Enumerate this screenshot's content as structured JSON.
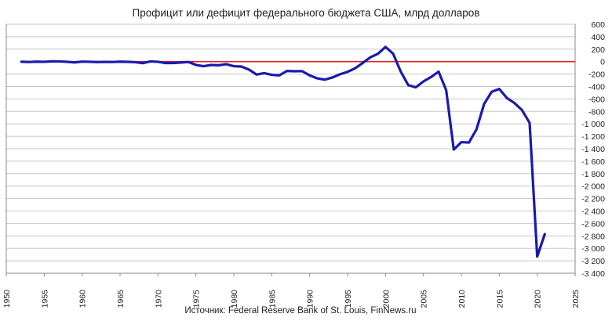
{
  "chart_data": {
    "type": "line",
    "title": "Профицит или дефицит федерального бюджета США, млрд долларов",
    "source": "Источник: Federal Reserve Bank of St. Louis, FinNews.ru",
    "xlim": [
      1950,
      2025
    ],
    "ylim": [
      -3400,
      600
    ],
    "x_ticks": [
      "1950",
      "1955",
      "1960",
      "1965",
      "1970",
      "1975",
      "1980",
      "1985",
      "1990",
      "1995",
      "2000",
      "2005",
      "2010",
      "2015",
      "2020",
      "2025"
    ],
    "y_ticks": [
      "600",
      "400",
      "200",
      "0",
      "-200",
      "-400",
      "-600",
      "-800",
      "-1 000",
      "-1 200",
      "-1 400",
      "-1 600",
      "-1 800",
      "-2 000",
      "-2 200",
      "-2 400",
      "-2 600",
      "-2 800",
      "-3 000",
      "-3 200",
      "-3 400"
    ],
    "grid": "horizontal",
    "zero_line": true,
    "colors": {
      "series": "#1a1aaf",
      "zero_line": "#e02020",
      "grid": "#c8c8c8"
    },
    "series": [
      {
        "x": [
          1952,
          1953,
          1954,
          1955,
          1956,
          1957,
          1958,
          1959,
          1960,
          1961,
          1962,
          1963,
          1964,
          1965,
          1966,
          1967,
          1968,
          1969,
          1970,
          1971,
          1972,
          1973,
          1974,
          1975,
          1976,
          1977,
          1978,
          1979,
          1980,
          1981,
          1982,
          1983,
          1984,
          1985,
          1986,
          1987,
          1988,
          1989,
          1990,
          1991,
          1992,
          1993,
          1994,
          1995,
          1996,
          1997,
          1998,
          1999,
          2000,
          2001,
          2002,
          2003,
          2004,
          2005,
          2006,
          2007,
          2008,
          2009,
          2010,
          2011,
          2012,
          2013,
          2014,
          2015,
          2016,
          2017,
          2018,
          2019,
          2020,
          2021
        ],
        "y": [
          -2,
          -6,
          -1,
          -3,
          4,
          3,
          -3,
          -13,
          0,
          -3,
          -7,
          -5,
          -6,
          -1,
          -4,
          -9,
          -25,
          3,
          -3,
          -23,
          -23,
          -15,
          -6,
          -53,
          -74,
          -54,
          -59,
          -41,
          -74,
          -79,
          -128,
          -208,
          -185,
          -212,
          -221,
          -150,
          -155,
          -153,
          -221,
          -269,
          -290,
          -255,
          -203,
          -164,
          -107,
          -22,
          69,
          126,
          236,
          128,
          -158,
          -378,
          -413,
          -318,
          -248,
          -161,
          -459,
          -1413,
          -1294,
          -1300,
          -1087,
          -680,
          -485,
          -439,
          -585,
          -665,
          -779,
          -984,
          -3132,
          -2772
        ]
      }
    ]
  }
}
